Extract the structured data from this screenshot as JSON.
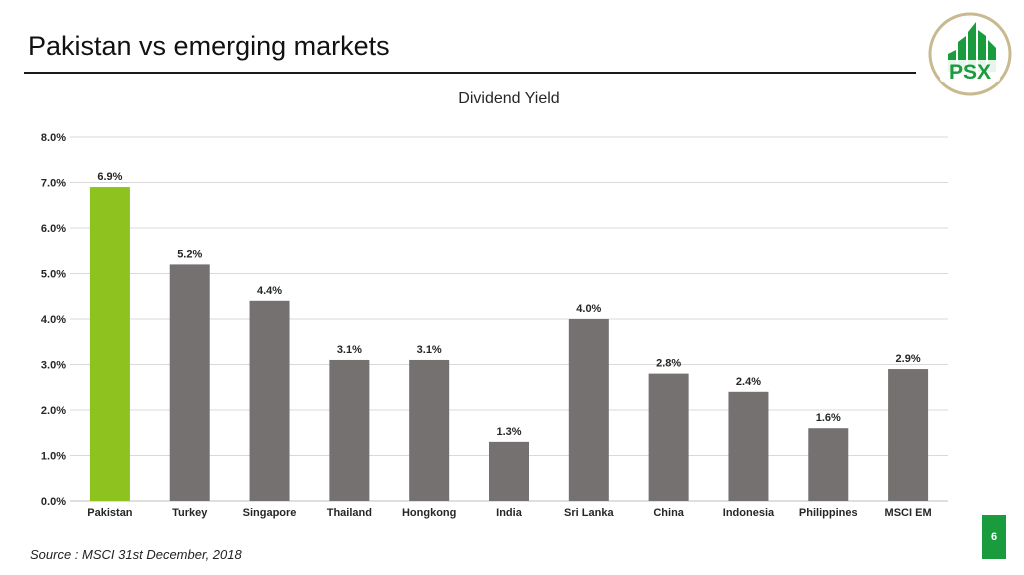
{
  "slide": {
    "title": "Pakistan vs emerging markets",
    "source": "Source : MSCI 31st December, 2018",
    "page_number": "6",
    "logo_text": "PSX"
  },
  "colors": {
    "highlight": "#8dc21f",
    "bar": "#757171",
    "grid": "#d9d9d9",
    "logo_green": "#1a9c3e",
    "logo_ring": "#c8b98f"
  },
  "chart_data": {
    "type": "bar",
    "title": "Dividend Yield",
    "categories": [
      "Pakistan",
      "Turkey",
      "Singapore",
      "Thailand",
      "Hongkong",
      "India",
      "Sri Lanka",
      "China",
      "Indonesia",
      "Philippines",
      "MSCI EM"
    ],
    "values": [
      6.9,
      5.2,
      4.4,
      3.1,
      3.1,
      1.3,
      4.0,
      2.8,
      2.4,
      1.6,
      2.9
    ],
    "data_labels": [
      "6.9%",
      "5.2%",
      "4.4%",
      "3.1%",
      "3.1%",
      "1.3%",
      "4.0%",
      "2.8%",
      "2.4%",
      "1.6%",
      "2.9%"
    ],
    "highlight_category": "Pakistan",
    "ylim": [
      0,
      8
    ],
    "yticks": [
      "0.0%",
      "1.0%",
      "2.0%",
      "3.0%",
      "4.0%",
      "5.0%",
      "6.0%",
      "7.0%",
      "8.0%"
    ],
    "grid": true,
    "legend": "none",
    "xlabel": "",
    "ylabel": ""
  }
}
